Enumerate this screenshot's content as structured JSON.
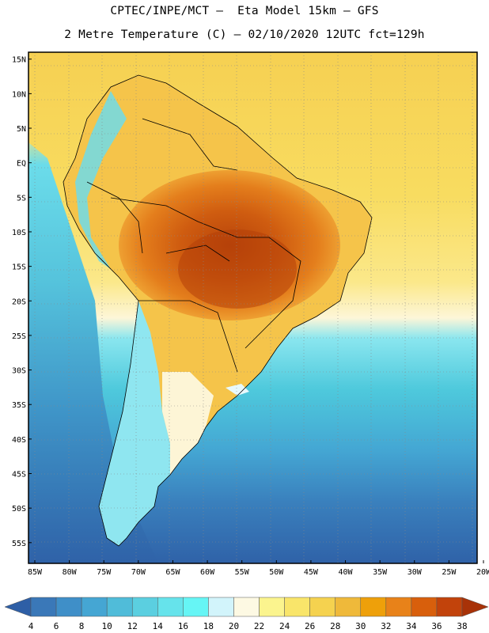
{
  "header": {
    "title_line1": "CPTEC/INPE/MCT –  Eta Model 15km – GFS",
    "title_line2": "2 Metre Temperature (C) – 02/10/2020 12UTC fct=129h"
  },
  "map": {
    "lat_labels": [
      "15N",
      "10N",
      "5N",
      "EQ",
      "5S",
      "10S",
      "15S",
      "20S",
      "25S",
      "30S",
      "35S",
      "40S",
      "45S",
      "50S",
      "55S"
    ],
    "lat_values": [
      15,
      10,
      5,
      0,
      -5,
      -10,
      -15,
      -20,
      -25,
      -30,
      -35,
      -40,
      -45,
      -50,
      -55
    ],
    "lon_labels": [
      "85W",
      "80W",
      "75W",
      "70W",
      "65W",
      "60W",
      "55W",
      "50W",
      "45W",
      "40W",
      "35W",
      "30W",
      "25W",
      "20W"
    ],
    "lon_values": [
      -85,
      -80,
      -75,
      -70,
      -65,
      -60,
      -55,
      -50,
      -45,
      -40,
      -35,
      -30,
      -25,
      -20
    ],
    "extent": {
      "lon_min": -85,
      "lon_max": -20,
      "lat_min": -58,
      "lat_max": 16
    }
  },
  "colorbar": {
    "labels": [
      "4",
      "6",
      "8",
      "10",
      "12",
      "14",
      "16",
      "18",
      "20",
      "22",
      "24",
      "26",
      "28",
      "30",
      "32",
      "34",
      "36",
      "38"
    ],
    "colors": [
      "#2e5fa6",
      "#3a78b8",
      "#3f8fc8",
      "#45a6d3",
      "#50bcd9",
      "#5bcfe0",
      "#66e3eb",
      "#66f5f5",
      "#d2f4fb",
      "#fdf9e3",
      "#fbf48e",
      "#f9e56a",
      "#f5d24f",
      "#efb93a",
      "#eea00a",
      "#e88219",
      "#d85f0c",
      "#c2430b",
      "#a83208"
    ]
  }
}
